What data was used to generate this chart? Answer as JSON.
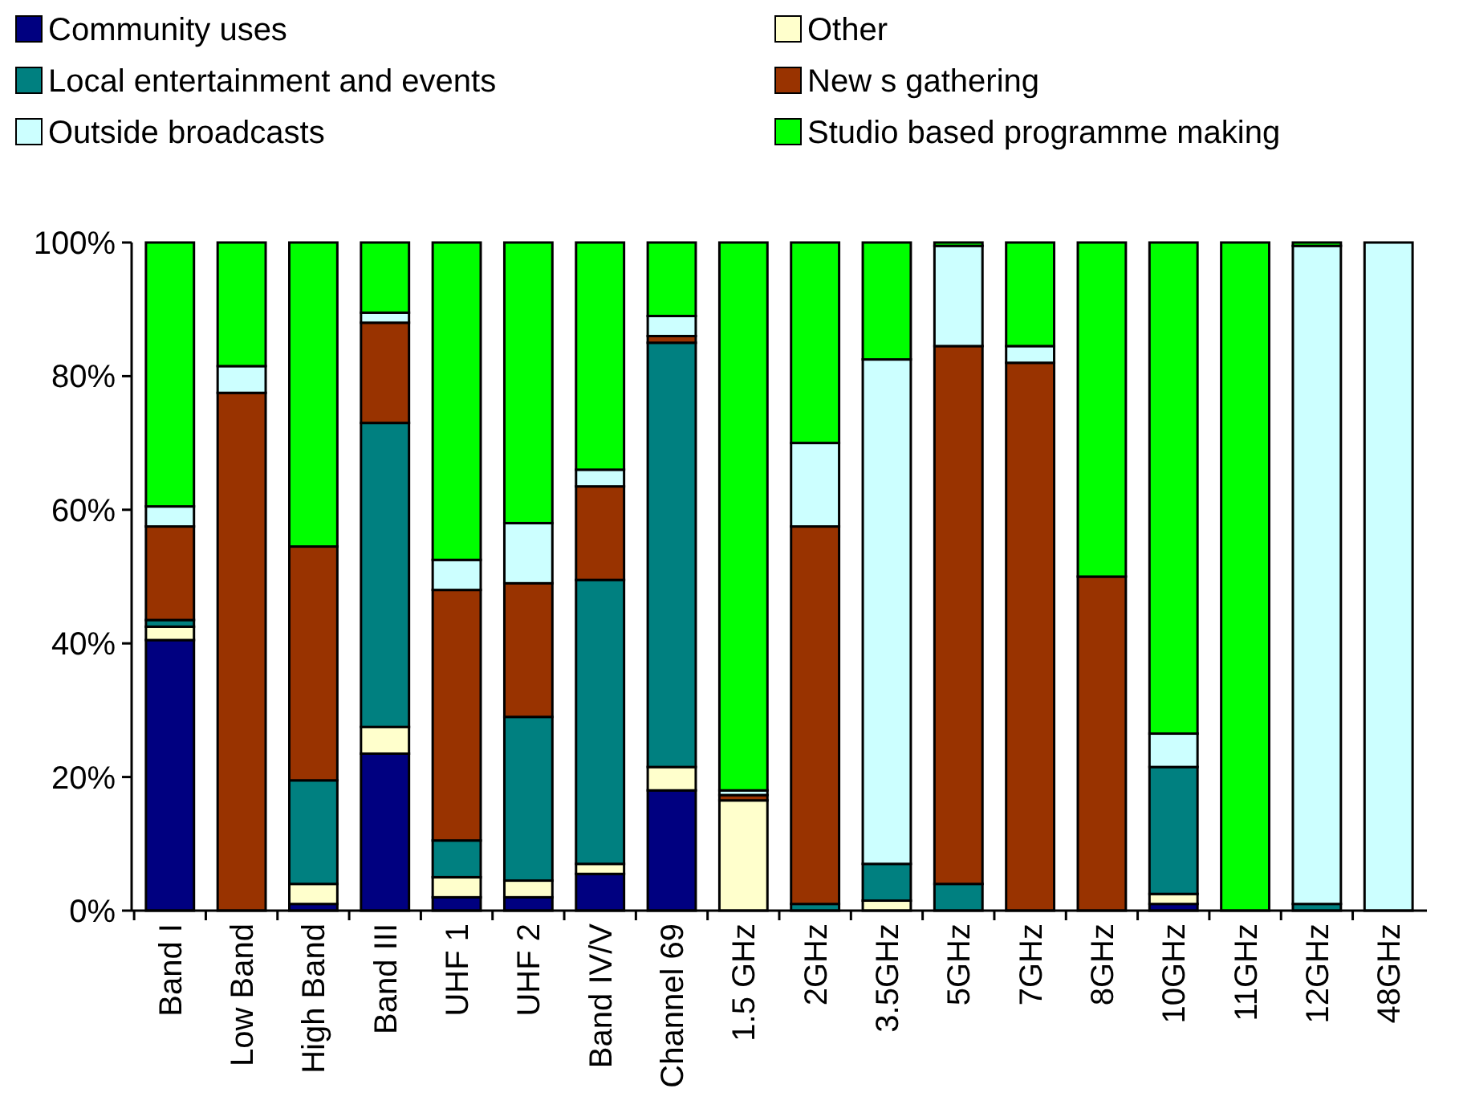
{
  "chart_data": {
    "type": "bar",
    "stacked": true,
    "legend": "top",
    "categories": [
      "Band I",
      "Low Band",
      "High Band",
      "Band III",
      "UHF 1",
      "UHF 2",
      "Band IV/V",
      "Channel 69",
      "1.5 GHz",
      "2GHz",
      "3.5GHz",
      "5GHz",
      "7GHz",
      "8GHz",
      "10GHz",
      "11GHz",
      "12GHz",
      "48GHz"
    ],
    "series": [
      {
        "name": "Community uses",
        "color": "#000080",
        "values": [
          40.5,
          null,
          1,
          23.5,
          2,
          2,
          5.5,
          18,
          0,
          0,
          0,
          0,
          0,
          0,
          1,
          0,
          0,
          0
        ]
      },
      {
        "name": "Other",
        "color": "#ffffcc",
        "values": [
          2,
          0,
          3,
          4,
          3,
          2.5,
          1.5,
          3.5,
          16.5,
          0,
          1.5,
          0,
          0,
          0,
          1.5,
          0,
          0,
          0
        ]
      },
      {
        "name": "Local entertainment and events",
        "color": "#008080",
        "values": [
          1,
          0,
          15.5,
          45.5,
          5.5,
          24.5,
          42.5,
          63.5,
          0,
          1,
          5.5,
          4,
          0,
          0,
          19,
          0,
          1,
          0
        ]
      },
      {
        "name": "New s gathering",
        "color": "#993300",
        "values": [
          14,
          77.5,
          35,
          15,
          37.5,
          20,
          14,
          1,
          0.8,
          56.5,
          0,
          80.5,
          82,
          50,
          0,
          0,
          0,
          0
        ]
      },
      {
        "name": "Outside broadcasts",
        "color": "#ccffff",
        "values": [
          3,
          4,
          0,
          1.5,
          4.5,
          9,
          2.5,
          3,
          0.7,
          12.5,
          75.5,
          15,
          2.5,
          0,
          5,
          0,
          98.5,
          100
        ]
      },
      {
        "name": "Studio based programme making",
        "color": "#00ff00",
        "values": [
          39.5,
          18.5,
          45.5,
          10.5,
          47.5,
          42,
          34,
          11,
          82,
          30,
          17.5,
          0.5,
          15.5,
          50,
          73.5,
          100,
          0.5,
          0
        ]
      }
    ],
    "ylim": [
      0,
      100
    ],
    "yticks": [
      {
        "value": 0,
        "label": "0%"
      },
      {
        "value": 20,
        "label": "20%"
      },
      {
        "value": 40,
        "label": "40%"
      },
      {
        "value": 60,
        "label": "60%"
      },
      {
        "value": 80,
        "label": "80%"
      },
      {
        "value": 100,
        "label": "100%"
      }
    ],
    "grid": false
  }
}
